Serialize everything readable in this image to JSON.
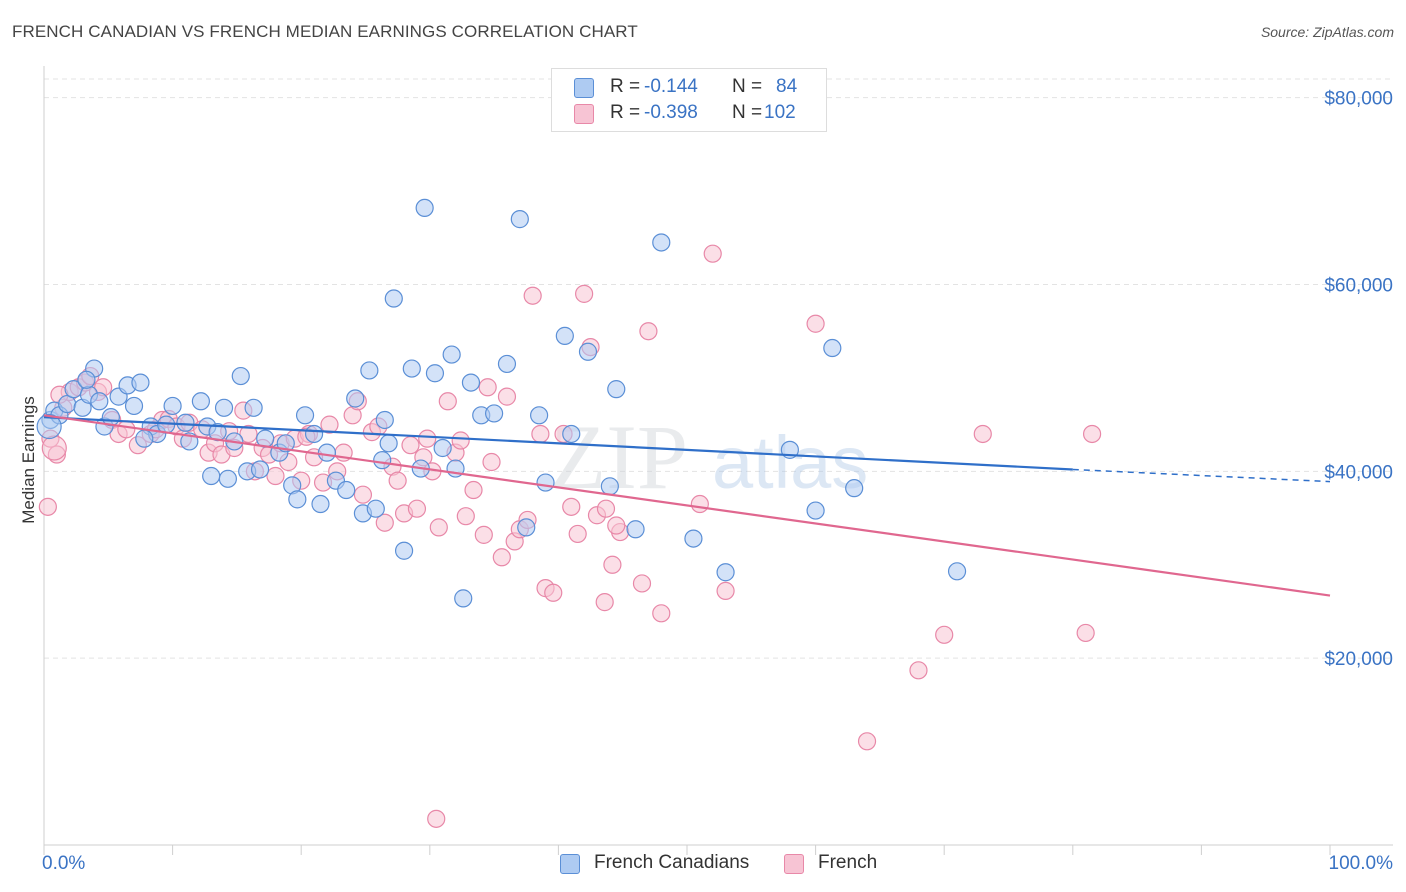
{
  "header": {
    "title": "FRENCH CANADIAN VS FRENCH MEDIAN EARNINGS CORRELATION CHART",
    "source": "Source: ZipAtlas.com"
  },
  "watermark": {
    "zip": "ZIP",
    "atlas": "atlas"
  },
  "legend_top": {
    "rows": [
      {
        "r_label": "R =",
        "r_value": "-0.144",
        "n_label": "N =",
        "n_value": "84"
      },
      {
        "r_label": "R =",
        "r_value": "-0.398",
        "n_label": "N =",
        "n_value": "102"
      }
    ]
  },
  "legend_bottom": {
    "items": [
      {
        "label": "French Canadians"
      },
      {
        "label": "French"
      }
    ]
  },
  "colors": {
    "blue_fill": "#aecbf2",
    "blue_stroke": "#5b8fd6",
    "blue_line": "#2f6fc9",
    "pink_fill": "#f7c4d4",
    "pink_stroke": "#e888a8",
    "pink_line": "#e0678f",
    "axis_label": "#3a73c4",
    "grid": "#e3e3e3"
  },
  "chart_data": {
    "type": "scatter",
    "title": "FRENCH CANADIAN VS FRENCH MEDIAN EARNINGS CORRELATION CHART",
    "xlabel": "",
    "ylabel": "Median Earnings",
    "xlim": [
      0,
      100
    ],
    "ylim": [
      0,
      82000
    ],
    "x_tick_labels": [
      "0.0%",
      "100.0%"
    ],
    "y_ticks": [
      20000,
      40000,
      60000,
      80000
    ],
    "y_tick_labels": [
      "$20,000",
      "$40,000",
      "$60,000",
      "$80,000"
    ],
    "grid": true,
    "legend_position": "top-center",
    "series": [
      {
        "name": "French Canadians",
        "r": -0.144,
        "n": 84,
        "trend": {
          "x0": 0,
          "y0": 45800,
          "x1": 80,
          "y1": 40200,
          "dashed_to_x": 100,
          "dashed_to_y": 38900
        },
        "points": [
          [
            0.5,
            45500
          ],
          [
            0.8,
            46500
          ],
          [
            1.2,
            46000
          ],
          [
            1.8,
            47200
          ],
          [
            2.3,
            48800
          ],
          [
            3.0,
            46800
          ],
          [
            3.5,
            48200
          ],
          [
            3.9,
            51000
          ],
          [
            4.3,
            47500
          ],
          [
            4.7,
            44800
          ],
          [
            5.2,
            45800
          ],
          [
            5.8,
            48000
          ],
          [
            6.5,
            49200
          ],
          [
            7.0,
            47000
          ],
          [
            7.5,
            49500
          ],
          [
            8.3,
            44800
          ],
          [
            8.8,
            44000
          ],
          [
            9.5,
            45000
          ],
          [
            10.0,
            47000
          ],
          [
            11.0,
            45200
          ],
          [
            11.3,
            43200
          ],
          [
            12.2,
            47500
          ],
          [
            12.7,
            44800
          ],
          [
            13.0,
            39500
          ],
          [
            13.5,
            44200
          ],
          [
            14.0,
            46800
          ],
          [
            14.3,
            39200
          ],
          [
            14.8,
            43200
          ],
          [
            15.3,
            50200
          ],
          [
            15.8,
            40000
          ],
          [
            16.3,
            46800
          ],
          [
            16.8,
            40200
          ],
          [
            17.2,
            43500
          ],
          [
            18.3,
            42000
          ],
          [
            18.8,
            43000
          ],
          [
            19.3,
            38500
          ],
          [
            19.7,
            37000
          ],
          [
            20.3,
            46000
          ],
          [
            21.0,
            44000
          ],
          [
            21.5,
            36500
          ],
          [
            22.0,
            42000
          ],
          [
            22.7,
            39000
          ],
          [
            23.5,
            38000
          ],
          [
            24.2,
            47800
          ],
          [
            24.8,
            35500
          ],
          [
            25.3,
            50800
          ],
          [
            25.8,
            36000
          ],
          [
            26.3,
            41200
          ],
          [
            26.8,
            43000
          ],
          [
            27.2,
            58500
          ],
          [
            28.0,
            31500
          ],
          [
            28.6,
            51000
          ],
          [
            29.3,
            40300
          ],
          [
            29.6,
            68200
          ],
          [
            30.4,
            50500
          ],
          [
            31.0,
            42500
          ],
          [
            31.7,
            52500
          ],
          [
            32.0,
            40300
          ],
          [
            32.6,
            26400
          ],
          [
            33.2,
            49500
          ],
          [
            34.0,
            46000
          ],
          [
            35.0,
            46200
          ],
          [
            36.0,
            51500
          ],
          [
            37.0,
            67000
          ],
          [
            37.5,
            34000
          ],
          [
            38.5,
            46000
          ],
          [
            39.0,
            38800
          ],
          [
            40.5,
            54500
          ],
          [
            41.0,
            44000
          ],
          [
            42.3,
            52800
          ],
          [
            44.0,
            38400
          ],
          [
            44.5,
            48800
          ],
          [
            46.0,
            33800
          ],
          [
            48.0,
            64500
          ],
          [
            50.5,
            32800
          ],
          [
            53.0,
            29200
          ],
          [
            58.0,
            42300
          ],
          [
            60.0,
            35800
          ],
          [
            61.3,
            53200
          ],
          [
            63.0,
            38200
          ],
          [
            71.0,
            29300
          ],
          [
            3.3,
            49800
          ],
          [
            7.8,
            43500
          ],
          [
            26.5,
            45500
          ]
        ]
      },
      {
        "name": "French",
        "r": -0.398,
        "n": 102,
        "trend": {
          "x0": 0,
          "y0": 46000,
          "x1": 100,
          "y1": 26700
        },
        "points": [
          [
            0.3,
            36200
          ],
          [
            0.5,
            43500
          ],
          [
            1.0,
            41800
          ],
          [
            1.5,
            46800
          ],
          [
            2.0,
            48500
          ],
          [
            2.7,
            49000
          ],
          [
            3.2,
            49500
          ],
          [
            3.6,
            50200
          ],
          [
            4.2,
            48500
          ],
          [
            4.6,
            49000
          ],
          [
            5.3,
            45500
          ],
          [
            5.8,
            44000
          ],
          [
            6.4,
            44500
          ],
          [
            7.3,
            42800
          ],
          [
            8.3,
            44000
          ],
          [
            8.7,
            44500
          ],
          [
            9.2,
            45500
          ],
          [
            9.7,
            45600
          ],
          [
            10.3,
            44800
          ],
          [
            10.8,
            43500
          ],
          [
            11.3,
            45200
          ],
          [
            12.3,
            44500
          ],
          [
            12.8,
            42000
          ],
          [
            13.3,
            43000
          ],
          [
            13.8,
            41800
          ],
          [
            14.4,
            44300
          ],
          [
            14.8,
            42500
          ],
          [
            15.5,
            46500
          ],
          [
            15.9,
            44000
          ],
          [
            16.4,
            40000
          ],
          [
            17.0,
            42500
          ],
          [
            17.5,
            41800
          ],
          [
            18.0,
            39500
          ],
          [
            18.4,
            43000
          ],
          [
            19.0,
            41000
          ],
          [
            19.5,
            43500
          ],
          [
            20.0,
            39000
          ],
          [
            20.6,
            44000
          ],
          [
            21.0,
            41500
          ],
          [
            21.7,
            38800
          ],
          [
            22.2,
            45000
          ],
          [
            22.8,
            40000
          ],
          [
            23.3,
            42000
          ],
          [
            24.0,
            46000
          ],
          [
            24.4,
            47500
          ],
          [
            24.8,
            37500
          ],
          [
            25.5,
            44200
          ],
          [
            26.0,
            44800
          ],
          [
            26.5,
            34500
          ],
          [
            27.1,
            40500
          ],
          [
            27.5,
            39000
          ],
          [
            28.0,
            35500
          ],
          [
            28.5,
            42800
          ],
          [
            29.0,
            36000
          ],
          [
            29.5,
            41500
          ],
          [
            29.8,
            43500
          ],
          [
            30.2,
            40000
          ],
          [
            30.7,
            34000
          ],
          [
            31.4,
            47500
          ],
          [
            32.0,
            42000
          ],
          [
            32.4,
            43300
          ],
          [
            32.8,
            35200
          ],
          [
            33.4,
            38000
          ],
          [
            34.2,
            33200
          ],
          [
            34.8,
            41000
          ],
          [
            35.6,
            30800
          ],
          [
            36.0,
            48000
          ],
          [
            36.6,
            32500
          ],
          [
            37.0,
            33800
          ],
          [
            37.6,
            34800
          ],
          [
            38.0,
            58800
          ],
          [
            38.6,
            44000
          ],
          [
            39.0,
            27500
          ],
          [
            39.6,
            27000
          ],
          [
            40.4,
            44000
          ],
          [
            41.0,
            36200
          ],
          [
            41.5,
            33300
          ],
          [
            42.0,
            59000
          ],
          [
            42.5,
            53300
          ],
          [
            43.0,
            35300
          ],
          [
            43.6,
            26000
          ],
          [
            44.2,
            30000
          ],
          [
            44.8,
            33500
          ],
          [
            46.5,
            28000
          ],
          [
            47.0,
            55000
          ],
          [
            48.0,
            24800
          ],
          [
            51.0,
            36500
          ],
          [
            52.0,
            63300
          ],
          [
            53.0,
            27200
          ],
          [
            60.0,
            55800
          ],
          [
            64.0,
            11100
          ],
          [
            68.0,
            18700
          ],
          [
            70.0,
            22500
          ],
          [
            73.0,
            44000
          ],
          [
            81.0,
            22700
          ],
          [
            81.5,
            44000
          ],
          [
            34.5,
            49000
          ],
          [
            43.7,
            36000
          ],
          [
            44.5,
            34200
          ],
          [
            30.5,
            2800
          ],
          [
            1.2,
            48200
          ],
          [
            20.4,
            43700
          ]
        ]
      }
    ]
  }
}
